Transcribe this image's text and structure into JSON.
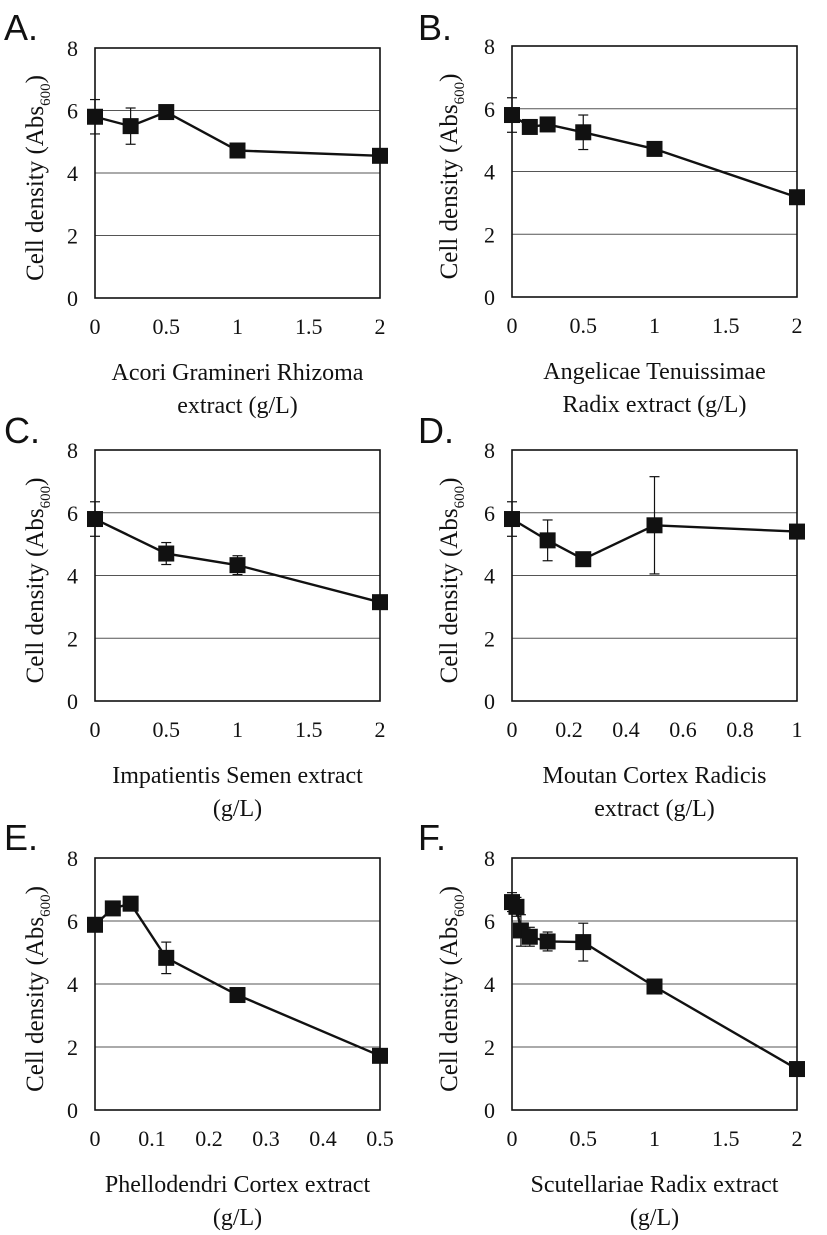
{
  "y_label_main": "Cell density (Abs",
  "y_label_sub": "600",
  "y_label_close": ")",
  "chart_data": [
    {
      "panel": "A.",
      "type": "line",
      "x": [
        0,
        0.25,
        0.5,
        1,
        2
      ],
      "y": [
        5.8,
        5.5,
        5.95,
        4.72,
        4.55
      ],
      "err": [
        0.55,
        0.58,
        0.15,
        0.12,
        0.1
      ],
      "xlim": [
        0,
        2
      ],
      "ylim": [
        0,
        8
      ],
      "xticks": [
        "0",
        "0.5",
        "1",
        "1.5",
        "2"
      ],
      "yticks": [
        "0",
        "2",
        "4",
        "6",
        "8"
      ],
      "xlabel": [
        "Acori Gramineri Rhizoma",
        "extract (g/L)"
      ]
    },
    {
      "panel": "B.",
      "type": "line",
      "x": [
        0,
        0.125,
        0.25,
        0.5,
        1,
        2
      ],
      "y": [
        5.8,
        5.42,
        5.5,
        5.25,
        4.72,
        3.18
      ],
      "err": [
        0.55,
        0.1,
        0.1,
        0.55,
        0.1,
        0.12
      ],
      "xlim": [
        0,
        2
      ],
      "ylim": [
        0,
        8
      ],
      "xticks": [
        "0",
        "0.5",
        "1",
        "1.5",
        "2"
      ],
      "yticks": [
        "0",
        "2",
        "4",
        "6",
        "8"
      ],
      "xlabel": [
        "Angelicae Tenuissimae",
        "Radix extract (g/L)"
      ]
    },
    {
      "panel": "C.",
      "type": "line",
      "x": [
        0,
        0.5,
        1,
        2
      ],
      "y": [
        5.8,
        4.7,
        4.33,
        3.15
      ],
      "err": [
        0.55,
        0.35,
        0.3,
        0.1
      ],
      "xlim": [
        0,
        2
      ],
      "ylim": [
        0,
        8
      ],
      "xticks": [
        "0",
        "0.5",
        "1",
        "1.5",
        "2"
      ],
      "yticks": [
        "0",
        "2",
        "4",
        "6",
        "8"
      ],
      "xlabel": [
        "Impatientis Semen extract",
        "(g/L)"
      ]
    },
    {
      "panel": "D.",
      "type": "line",
      "x": [
        0,
        0.125,
        0.25,
        0.5,
        1
      ],
      "y": [
        5.8,
        5.12,
        4.52,
        5.6,
        5.4
      ],
      "err": [
        0.55,
        0.65,
        0.12,
        1.55,
        0.1
      ],
      "xlim": [
        0,
        1
      ],
      "ylim": [
        0,
        8
      ],
      "xticks": [
        "0",
        "0.2",
        "0.4",
        "0.6",
        "0.8",
        "1"
      ],
      "yticks": [
        "0",
        "2",
        "4",
        "6",
        "8"
      ],
      "xlabel": [
        "Moutan Cortex Radicis",
        "extract (g/L)"
      ]
    },
    {
      "panel": "E.",
      "type": "line",
      "x": [
        0,
        0.03125,
        0.0625,
        0.125,
        0.25,
        0.5
      ],
      "y": [
        5.88,
        6.4,
        6.55,
        4.83,
        3.65,
        1.72
      ],
      "err": [
        0.1,
        0.1,
        0.1,
        0.5,
        0.1,
        0.1
      ],
      "xlim": [
        0,
        0.5
      ],
      "ylim": [
        0,
        8
      ],
      "xticks": [
        "0",
        "0.1",
        "0.2",
        "0.3",
        "0.4",
        "0.5"
      ],
      "yticks": [
        "0",
        "2",
        "4",
        "6",
        "8"
      ],
      "xlabel": [
        "Phellodendri Cortex extract",
        "(g/L)"
      ]
    },
    {
      "panel": "F.",
      "type": "line",
      "x": [
        0,
        0.03125,
        0.0625,
        0.125,
        0.25,
        0.5,
        1,
        2
      ],
      "y": [
        6.6,
        6.45,
        5.7,
        5.5,
        5.35,
        5.33,
        3.92,
        1.3
      ],
      "err": [
        0.3,
        0.3,
        0.5,
        0.3,
        0.3,
        0.6,
        0.15,
        0.1
      ],
      "xlim": [
        0,
        2
      ],
      "ylim": [
        0,
        8
      ],
      "xticks": [
        "0",
        "0.5",
        "1",
        "1.5",
        "2"
      ],
      "yticks": [
        "0",
        "2",
        "4",
        "6",
        "8"
      ],
      "xlabel": [
        "Scutellariae Radix extract",
        "(g/L)"
      ]
    }
  ]
}
